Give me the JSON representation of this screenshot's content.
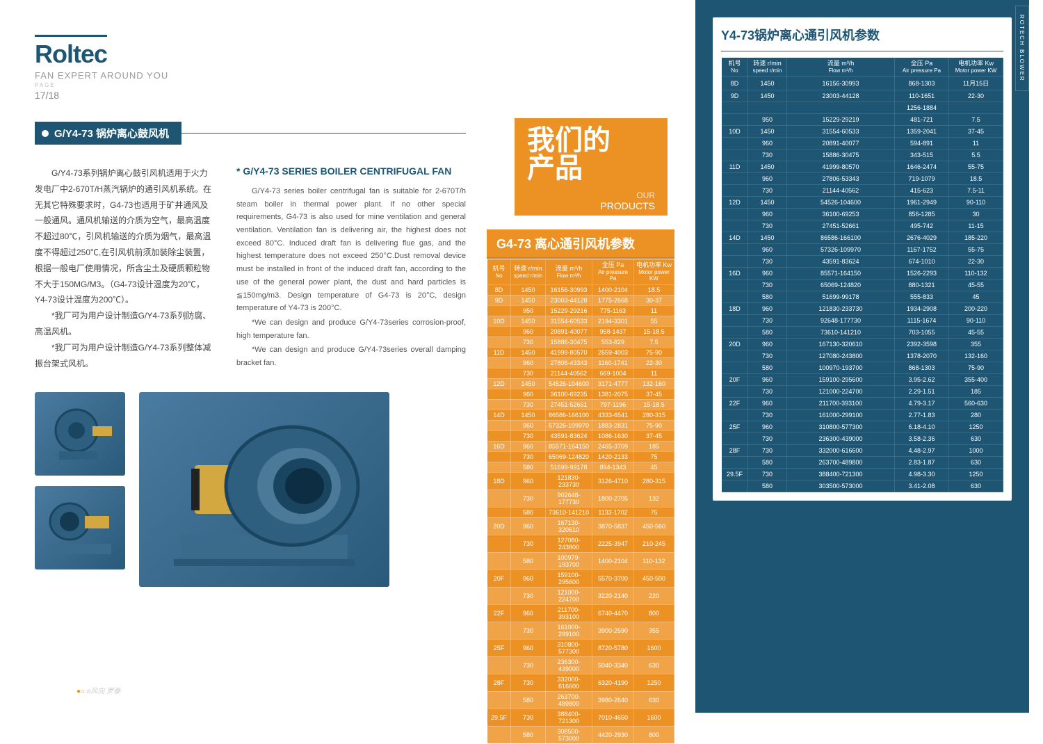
{
  "logo": "Roltec",
  "tagline": "FAN EXPERT AROUND YOU",
  "page_label": "PAGE",
  "page_num": "17/18",
  "title_bar": "G/Y4-73 锅炉离心鼓风机",
  "cn_body": "　　G/Y4-73系列锅炉离心鼓引风机适用于火力发电厂中2-670T/H蒸汽锅炉的通引风机系统。在无其它特殊要求时，G4-73也适用于矿井通风及一般通风。通风机输送的介质为空气，最高温度不超过80℃，引风机输送的介质为烟气，最高温度不得超过250℃,在引风机前须加装除尘装置，根据一般电厂使用情况，所含尘土及硬质颗粒物不大于150MG/M3。（G4-73设计温度为20℃，Y4-73设计温度为200℃）。",
  "cn_note1": "*我厂可为用户设计制造G/Y4-73系列防腐、高温风机。",
  "cn_note2": "*我厂可为用户设计制造G/Y4-73系列整体减振台架式风机。",
  "en_heading": "* G/Y4-73 SERIES BOILER CENTRIFUGAL FAN",
  "en_p1": "G/Y4-73 series boiler centrifugal fan is suitable for 2-670T/h steam boiler in thermal power plant. If no other special requirements, G4-73 is also used for mine ventilation and general ventilation. Ventilation fan is delivering air, the highest does not exceed 80°C. Induced draft fan is delivering flue gas, and the highest temperature does not exceed 250°C.Dust removal device must be installed in front of the induced draft fan, according to the use of the general power plant, the dust and hard particles is ≦150mg/m3. Design temperature of G4-73 is 20°C, design temperature of Y4-73 is 200°C.",
  "en_p2": "*We can design and produce G/Y4-73series corrosion-proof, high temperature fan.",
  "en_p3": "*We can design and produce G/Y4-73series overall damping bracket fan.",
  "prod_badge_cn1": "我们的",
  "prod_badge_cn2": "产品",
  "prod_badge_en1": "OUR",
  "prod_badge_en2": "PRODUCTS",
  "orange_table_title": "G4-73 离心通引风机参数",
  "blue_table_title": "Y4-73锅炉离心通引风机参数",
  "side_tab": "ROTECH BLOWER",
  "headers": {
    "c1": "机号",
    "c1s": "No",
    "c2": "转速 r/min",
    "c2s": "speed r/min",
    "c3": "流量 m³/h",
    "c3s": "Flow m³/h",
    "c4": "全压 Pa",
    "c4s": "Air pressure Pa",
    "c5": "电机功率 Kw",
    "c5s": "Motor power KW"
  },
  "orange_rows": [
    [
      "8D",
      "1450",
      "16156-30993",
      "1400-2104",
      "18.5"
    ],
    [
      "9D",
      "1450",
      "23003-44128",
      "1775-2668",
      "30-37"
    ],
    [
      "",
      "950",
      "15229-29216",
      "775-1163",
      "11"
    ],
    [
      "10D",
      "1450",
      "31554-60533",
      "2194-3301",
      "55"
    ],
    [
      "",
      "960",
      "20891-40077",
      "958-1437",
      "15-18.5"
    ],
    [
      "",
      "730",
      "15886-30475",
      "553-829",
      "7.5"
    ],
    [
      "11D",
      "1450",
      "41999-80570",
      "2659-4003",
      "75-90"
    ],
    [
      "",
      "960",
      "27806-43343",
      "1160-1741",
      "22-30"
    ],
    [
      "",
      "730",
      "21144-40562",
      "669-1004",
      "11"
    ],
    [
      "12D",
      "1450",
      "54526-104600",
      "3171-4777",
      "132-160"
    ],
    [
      "",
      "960",
      "36100-69235",
      "1381-2075",
      "37-45"
    ],
    [
      "",
      "730",
      "27451-52661",
      "797-1196",
      "15-18.5"
    ],
    [
      "14D",
      "1450",
      "86586-166100",
      "4333-6541",
      "280-315"
    ],
    [
      "",
      "960",
      "57326-109970",
      "1883-2831",
      "75-90"
    ],
    [
      "",
      "730",
      "43591-83624",
      "1086-1630",
      "37-45"
    ],
    [
      "16D",
      "960",
      "85571-164150",
      "2465-3709",
      "185"
    ],
    [
      "",
      "730",
      "65069-124820",
      "1420-2133",
      "75"
    ],
    [
      "",
      "580",
      "51699-99178",
      "894-1343",
      "45"
    ],
    [
      "18D",
      "960",
      "121830-233730",
      "3126-4710",
      "280-315"
    ],
    [
      "",
      "730",
      "902648-177730",
      "1800-2705",
      "132"
    ],
    [
      "",
      "580",
      "73610-141210",
      "1133-1702",
      "75"
    ],
    [
      "20D",
      "960",
      "167130-320610",
      "3870-5837",
      "450-560"
    ],
    [
      "",
      "730",
      "127080-243800",
      "2225-3947",
      "210-245"
    ],
    [
      "",
      "580",
      "100979-193700",
      "1400-2104",
      "110-132"
    ],
    [
      "20F",
      "960",
      "159100-295600",
      "5570-3700",
      "450-500"
    ],
    [
      "",
      "730",
      "121000-224700",
      "3220-2140",
      "220"
    ],
    [
      "22F",
      "960",
      "211700-393100",
      "6740-4470",
      "800"
    ],
    [
      "",
      "730",
      "161000-299100",
      "3900-2590",
      "355"
    ],
    [
      "25F",
      "960",
      "310800-577300",
      "8720-5780",
      "1600"
    ],
    [
      "",
      "730",
      "236300-439000",
      "5040-3340",
      "630"
    ],
    [
      "28F",
      "730",
      "332000-616600",
      "6320-4190",
      "1250"
    ],
    [
      "",
      "580",
      "263700-489800",
      "3980-2640",
      "630"
    ],
    [
      "29.5F",
      "730",
      "388400-721300",
      "7010-4650",
      "1600"
    ],
    [
      "",
      "580",
      "308500-573000",
      "4420-2930",
      "800"
    ]
  ],
  "blue_rows": [
    [
      "8D",
      "1450",
      "16156-30993",
      "868-1303",
      "11月15日"
    ],
    [
      "9D",
      "1450",
      "23003-44128",
      "110-1651",
      "22-30"
    ],
    [
      "",
      "",
      "",
      "1256-1884",
      ""
    ],
    [
      "",
      "950",
      "15229-29219",
      "481-721",
      "7.5"
    ],
    [
      "10D",
      "1450",
      "31554-60533",
      "1359-2041",
      "37-45"
    ],
    [
      "",
      "960",
      "20891-40077",
      "594-891",
      "11"
    ],
    [
      "",
      "730",
      "15886-30475",
      "343-515",
      "5.5"
    ],
    [
      "11D",
      "1450",
      "41999-80570",
      "1646-2474",
      "55-75"
    ],
    [
      "",
      "960",
      "27806-53343",
      "719-1079",
      "18.5"
    ],
    [
      "",
      "730",
      "21144-40562",
      "415-623",
      "7.5-11"
    ],
    [
      "12D",
      "1450",
      "54526-104600",
      "1961-2949",
      "90-110"
    ],
    [
      "",
      "960",
      "36100-69253",
      "856-1285",
      "30"
    ],
    [
      "",
      "730",
      "27451-52661",
      "495-742",
      "11-15"
    ],
    [
      "14D",
      "1450",
      "86586-166100",
      "2676-4029",
      "185-220"
    ],
    [
      "",
      "960",
      "57326-109970",
      "1167-1752",
      "55-75"
    ],
    [
      "",
      "730",
      "43591-83624",
      "674-1010",
      "22-30"
    ],
    [
      "16D",
      "960",
      "85571-164150",
      "1526-2293",
      "110-132"
    ],
    [
      "",
      "730",
      "65069-124820",
      "880-1321",
      "45-55"
    ],
    [
      "",
      "580",
      "51699-99178",
      "555-833",
      "45"
    ],
    [
      "18D",
      "960",
      "121830-233730",
      "1934-2908",
      "200-220"
    ],
    [
      "",
      "730",
      "92648-177730",
      "1115-1674",
      "90-110"
    ],
    [
      "",
      "580",
      "73610-141210",
      "703-1055",
      "45-55"
    ],
    [
      "20D",
      "960",
      "167130-320610",
      "2392-3598",
      "355"
    ],
    [
      "",
      "730",
      "127080-243800",
      "1378-2070",
      "132-160"
    ],
    [
      "",
      "580",
      "100970-193700",
      "868-1303",
      "75-90"
    ],
    [
      "20F",
      "960",
      "159100-295600",
      "3.95-2.62",
      "355-400"
    ],
    [
      "",
      "730",
      "121000-224700",
      "2.29-1.51",
      "185"
    ],
    [
      "22F",
      "960",
      "211700-393100",
      "4.79-3.17",
      "560-630"
    ],
    [
      "",
      "730",
      "161000-299100",
      "2.77-1.83",
      "280"
    ],
    [
      "25F",
      "960",
      "310800-577300",
      "6.18-4.10",
      "1250"
    ],
    [
      "",
      "730",
      "236300-439000",
      "3.58-2.36",
      "630"
    ],
    [
      "28F",
      "730",
      "332000-616600",
      "4.48-2.97",
      "1000"
    ],
    [
      "",
      "580",
      "263700-489800",
      "2.83-1.87",
      "630"
    ],
    [
      "29.5F",
      "730",
      "388400-721300",
      "4.98-3.30",
      "1250"
    ],
    [
      "",
      "580",
      "303500-573000",
      "3.41-2.08",
      "630"
    ]
  ],
  "footer": "罗泰",
  "colors": {
    "brand_blue": "#1d5572",
    "orange": "#ec9124",
    "light_grey": "#ccc"
  }
}
